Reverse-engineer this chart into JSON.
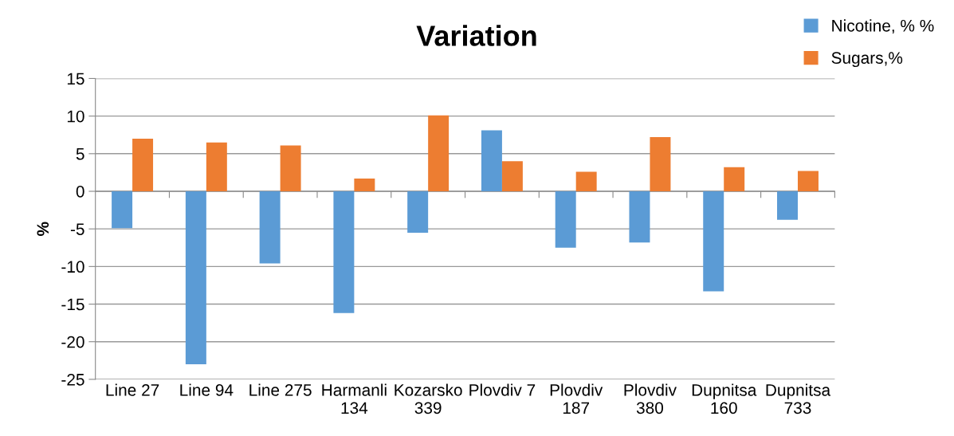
{
  "chart_data": {
    "type": "bar",
    "title": "Variation",
    "ylabel": "%",
    "categories": [
      "Line 27",
      "Line 94",
      "Line 275",
      "Harmanli 134",
      "Kozarsko 339",
      "Plovdiv 7",
      "Plovdiv 187",
      "Plovdiv 380",
      "Dupnitsa 160",
      "Dupnitsa 733"
    ],
    "series": [
      {
        "name": "Nicotine, % %",
        "color": "#5b9bd5",
        "values": [
          -4.9,
          -23.0,
          -9.6,
          -16.2,
          -5.5,
          8.1,
          -7.5,
          -6.8,
          -13.3,
          -3.8
        ]
      },
      {
        "name": "Sugars,%",
        "color": "#ed7d31",
        "values": [
          7.0,
          6.5,
          6.1,
          1.7,
          10.1,
          4.0,
          2.6,
          7.2,
          3.2,
          2.7
        ]
      }
    ],
    "ylim": [
      -25,
      15
    ],
    "yticks": [
      -25,
      -20,
      -15,
      -10,
      -5,
      0,
      5,
      10,
      15
    ],
    "grid": "y",
    "legend": "top right"
  }
}
